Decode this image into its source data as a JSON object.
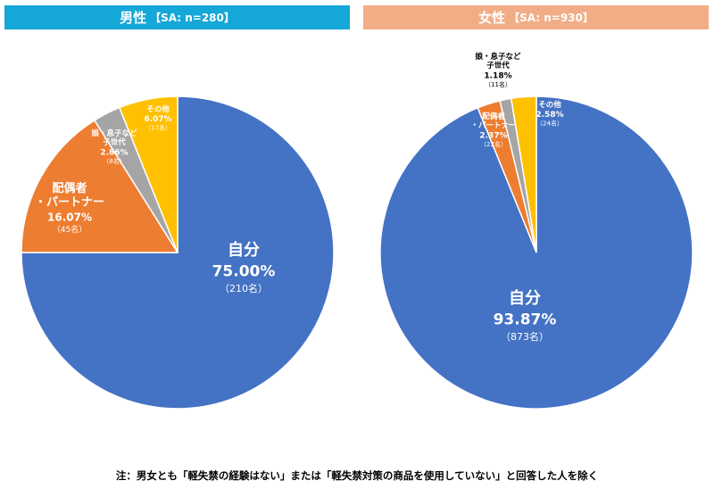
{
  "chart_data": [
    {
      "type": "pie",
      "title": "男性",
      "subtitle": "【SA: n=280】",
      "header_color": "#15a7d8",
      "slices": [
        {
          "label": "自分",
          "percent_text": "75.00%",
          "count_text": "（210名）",
          "value": 75.0,
          "color": "#4472c4"
        },
        {
          "label": "配偶者\n・パートナー",
          "percent_text": "16.07%",
          "count_text": "（45名）",
          "value": 16.07,
          "color": "#ed7d31"
        },
        {
          "label": "娘・息子など\n子世代",
          "percent_text": "2.86%",
          "count_text": "（8名）",
          "value": 2.86,
          "color": "#a5a5a5"
        },
        {
          "label": "その他",
          "percent_text": "6.07%",
          "count_text": "（17名）",
          "value": 6.07,
          "color": "#ffc000"
        }
      ]
    },
    {
      "type": "pie",
      "title": "女性",
      "subtitle": "【SA: n=930】",
      "header_color": "#f2ad86",
      "slices": [
        {
          "label": "自分",
          "percent_text": "93.87%",
          "count_text": "（873名）",
          "value": 93.87,
          "color": "#4472c4"
        },
        {
          "label": "配偶者\n・パートナー",
          "percent_text": "2.37%",
          "count_text": "（22名）",
          "value": 2.37,
          "color": "#ed7d31"
        },
        {
          "label": "娘・息子など\n子世代",
          "percent_text": "1.18%",
          "count_text": "（11名）",
          "value": 1.18,
          "color": "#a5a5a5"
        },
        {
          "label": "その他",
          "percent_text": "2.58%",
          "count_text": "（24名）",
          "value": 2.58,
          "color": "#ffc000"
        }
      ]
    }
  ],
  "footnote": "注：男女とも「軽失禁の経験はない」または「軽失禁対策の商品を使用していない」と回答した人を除く"
}
